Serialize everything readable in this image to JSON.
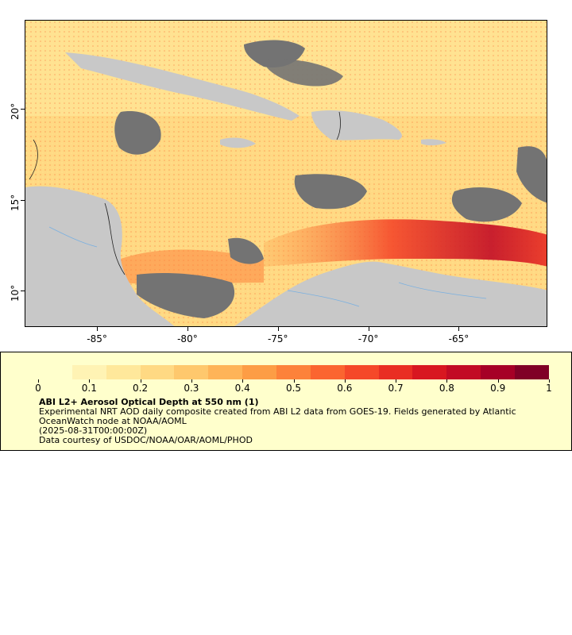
{
  "map": {
    "y_ticks": [
      {
        "label": "20°",
        "value": 20
      },
      {
        "label": "15°",
        "value": 15
      },
      {
        "label": "10°",
        "value": 10
      }
    ],
    "x_ticks": [
      {
        "label": "-85°",
        "value": -85
      },
      {
        "label": "-80°",
        "value": -80
      },
      {
        "label": "-75°",
        "value": -75
      },
      {
        "label": "-70°",
        "value": -70
      },
      {
        "label": "-65°",
        "value": -65
      }
    ],
    "colors": {
      "land": "#c8c8c8",
      "no_data": "#737373",
      "rivers": "#7ab0e0",
      "borders": "#222222"
    }
  },
  "legend": {
    "colorbar_colors": [
      "#ffffcc",
      "#fff3b4",
      "#ffe89b",
      "#ffd983",
      "#fec86d",
      "#feb458",
      "#fd9d45",
      "#fd823a",
      "#fb6530",
      "#f54829",
      "#e92e23",
      "#d81720",
      "#c20b24",
      "#a60026",
      "#800026"
    ],
    "ticks": [
      "0",
      "0.1",
      "0.2",
      "0.3",
      "0.4",
      "0.5",
      "0.6",
      "0.7",
      "0.8",
      "0.9",
      "1"
    ],
    "title": "ABI L2+ Aerosol Optical Depth at 550 nm (1)",
    "description": "Experimental NRT AOD daily composite created from ABI L2 data from GOES-19. Fields generated by Atlantic OceanWatch node at NOAA/AOML",
    "time": "(2025-08-31T00:00:00Z)",
    "credit": "Data courtesy of USDOC/NOAA/OAR/AOML/PHOD"
  }
}
